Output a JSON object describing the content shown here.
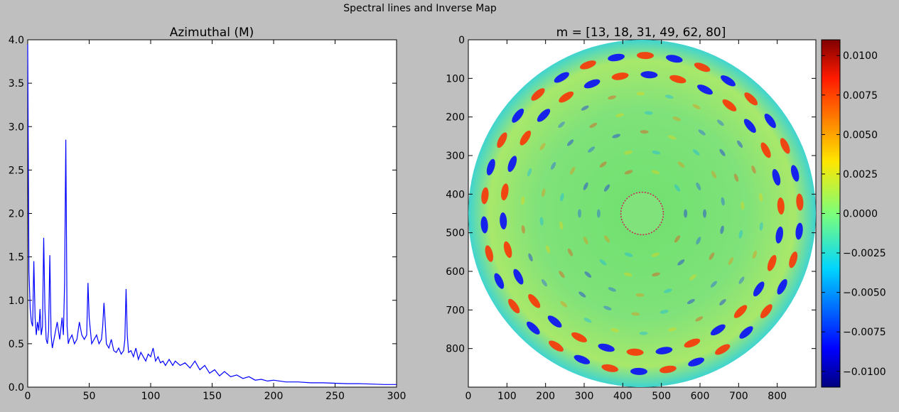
{
  "figure": {
    "suptitle": "Spectral lines and Inverse Map"
  },
  "chart_data": [
    {
      "type": "line",
      "title": "Azimuthal (M)",
      "xlabel": "",
      "ylabel": "",
      "xlim": [
        0,
        300
      ],
      "ylim": [
        0,
        4.0
      ],
      "x_ticks": [
        0,
        50,
        100,
        150,
        200,
        250,
        300
      ],
      "y_ticks": [
        0.0,
        0.5,
        1.0,
        1.5,
        2.0,
        2.5,
        3.0,
        3.5,
        4.0
      ],
      "x_tick_labels": [
        "0",
        "50",
        "100",
        "150",
        "200",
        "250",
        "300"
      ],
      "y_tick_labels": [
        "0.0",
        "0.5",
        "1.0",
        "1.5",
        "2.0",
        "2.5",
        "3.0",
        "3.5",
        "4.0"
      ],
      "grid": false,
      "line_color": "#0000ff",
      "series": [
        {
          "x": [
            0,
            1,
            2,
            3,
            4,
            5,
            6,
            7,
            8,
            9,
            10,
            11,
            12,
            13,
            14,
            15,
            16,
            17,
            18,
            19,
            20,
            22,
            24,
            26,
            28,
            29,
            30,
            31,
            32,
            33,
            34,
            36,
            38,
            40,
            42,
            44,
            46,
            48,
            49,
            50,
            52,
            54,
            56,
            58,
            60,
            61,
            62,
            63,
            64,
            66,
            68,
            70,
            72,
            74,
            76,
            78,
            79,
            80,
            81,
            82,
            84,
            86,
            88,
            90,
            92,
            94,
            96,
            98,
            100,
            102,
            104,
            106,
            108,
            110,
            112,
            115,
            118,
            120,
            124,
            128,
            132,
            136,
            140,
            144,
            148,
            152,
            156,
            160,
            165,
            170,
            175,
            180,
            185,
            190,
            195,
            200,
            210,
            220,
            230,
            240,
            250,
            260,
            270,
            280,
            290,
            300
          ],
          "y": [
            3.95,
            1.35,
            0.9,
            0.75,
            0.7,
            1.45,
            0.8,
            0.6,
            0.75,
            0.65,
            0.9,
            0.6,
            0.7,
            1.72,
            0.9,
            0.55,
            0.5,
            0.65,
            1.52,
            0.6,
            0.45,
            0.6,
            0.75,
            0.55,
            0.8,
            0.6,
            1.2,
            2.85,
            0.7,
            0.5,
            0.55,
            0.6,
            0.5,
            0.55,
            0.75,
            0.6,
            0.55,
            0.6,
            1.2,
            0.8,
            0.5,
            0.55,
            0.6,
            0.5,
            0.55,
            0.7,
            0.97,
            0.75,
            0.5,
            0.45,
            0.55,
            0.42,
            0.4,
            0.45,
            0.38,
            0.42,
            0.55,
            1.13,
            0.6,
            0.4,
            0.42,
            0.35,
            0.45,
            0.32,
            0.4,
            0.35,
            0.3,
            0.38,
            0.35,
            0.45,
            0.3,
            0.35,
            0.28,
            0.3,
            0.25,
            0.32,
            0.25,
            0.3,
            0.25,
            0.28,
            0.22,
            0.3,
            0.2,
            0.25,
            0.16,
            0.2,
            0.13,
            0.18,
            0.12,
            0.14,
            0.1,
            0.12,
            0.08,
            0.09,
            0.07,
            0.08,
            0.06,
            0.06,
            0.05,
            0.05,
            0.045,
            0.04,
            0.04,
            0.035,
            0.03,
            0.03
          ]
        }
      ]
    },
    {
      "type": "heatmap",
      "title": "m = [13, 18, 31, 49, 62, 80]",
      "xlabel": "",
      "ylabel": "",
      "xlim": [
        0,
        900
      ],
      "ylim": [
        900,
        0
      ],
      "x_ticks": [
        0,
        100,
        200,
        300,
        400,
        500,
        600,
        700,
        800
      ],
      "y_ticks": [
        0,
        100,
        200,
        300,
        400,
        500,
        600,
        700,
        800
      ],
      "x_tick_labels": [
        "0",
        "100",
        "200",
        "300",
        "400",
        "500",
        "600",
        "700",
        "800"
      ],
      "y_tick_labels": [
        "0",
        "100",
        "200",
        "300",
        "400",
        "500",
        "600",
        "700",
        "800"
      ],
      "colormap": "jet",
      "colorbar": {
        "vmin": -0.011,
        "vmax": 0.011,
        "ticks": [
          0.01,
          0.0075,
          0.005,
          0.0025,
          0.0,
          -0.0025,
          -0.005,
          -0.0075,
          -0.01
        ],
        "tick_labels": [
          "0.0100",
          "0.0075",
          "0.0050",
          "0.0025",
          "0.0000",
          "−0.0025",
          "−0.0050",
          "−0.0075",
          "−0.0100"
        ]
      },
      "disk": {
        "center": [
          450,
          450
        ],
        "radius": 450,
        "inner_radius": 55
      },
      "modes": [
        13,
        18,
        31,
        49,
        62,
        80
      ]
    }
  ]
}
